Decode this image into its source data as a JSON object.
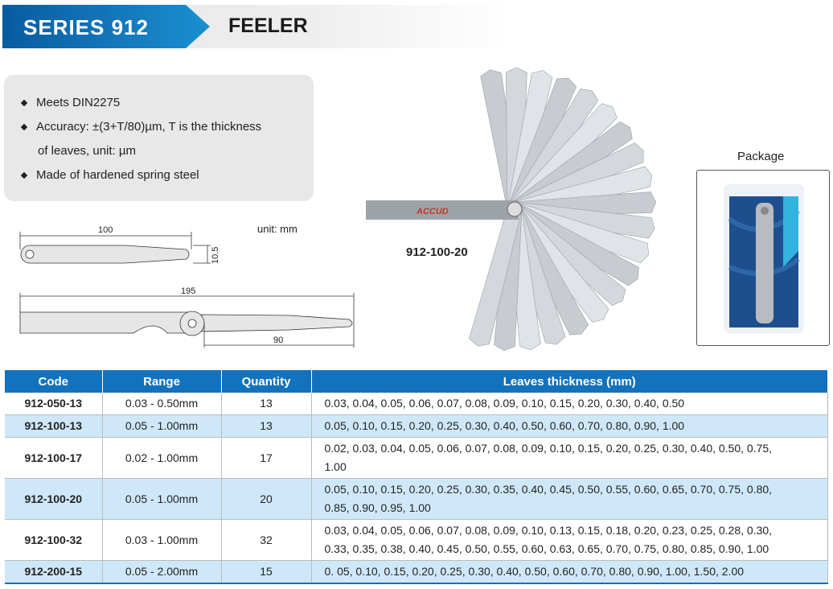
{
  "header": {
    "series": "SERIES 912",
    "product": "FEELER"
  },
  "features": [
    "Meets DIN2275",
    "Accuracy: ±(3+T/80)µm, T is the thickness",
    "of leaves, unit: µm",
    "Made of hardened spring steel"
  ],
  "drawing": {
    "unit": "unit: mm",
    "leaf_length": "100",
    "leaf_width": "10.5",
    "total_length": "195",
    "blade_length": "90"
  },
  "photo": {
    "model": "912-100-20",
    "brand_logo": "ACCUD"
  },
  "package": {
    "label": "Package"
  },
  "table": {
    "headers": [
      "Code",
      "Range",
      "Quantity",
      "Leaves thickness (mm)"
    ],
    "rows": [
      {
        "code": "912-050-13",
        "range": "0.03 - 0.50mm",
        "qty": "13",
        "leaves": "0.03, 0.04, 0.05, 0.06, 0.07, 0.08, 0.09, 0.10, 0.15, 0.20, 0.30, 0.40, 0.50"
      },
      {
        "code": "912-100-13",
        "range": "0.05 - 1.00mm",
        "qty": "13",
        "leaves": "0.05, 0.10, 0.15, 0.20, 0.25, 0.30, 0.40, 0.50, 0.60, 0.70, 0.80, 0.90, 1.00"
      },
      {
        "code": "912-100-17",
        "range": "0.02 - 1.00mm",
        "qty": "17",
        "leaves": "0.02, 0.03, 0.04, 0.05, 0.06, 0.07, 0.08, 0.09, 0.10, 0.15, 0.20, 0.25, 0.30, 0.40, 0.50, 0.75, 1.00"
      },
      {
        "code": "912-100-20",
        "range": "0.05 - 1.00mm",
        "qty": "20",
        "leaves": "0.05, 0.10, 0.15, 0.20, 0.25, 0.30, 0.35, 0.40, 0.45, 0.50, 0.55, 0.60, 0.65, 0.70, 0.75, 0.80, 0.85, 0.90, 0.95, 1.00"
      },
      {
        "code": "912-100-32",
        "range": "0.03 - 1.00mm",
        "qty": "32",
        "leaves": "0.03, 0.04, 0.05, 0.06, 0.07, 0.08, 0.09, 0.10, 0.13, 0.15, 0.18, 0.20, 0.23, 0.25, 0.28, 0.30, 0.33, 0.35, 0.38, 0.40, 0.45, 0.50, 0.55, 0.60, 0.63, 0.65, 0.70, 0.75, 0.80, 0.85, 0.90, 1.00"
      },
      {
        "code": "912-200-15",
        "range": "0.05 - 2.00mm",
        "qty": "15",
        "leaves": "0. 05, 0.10, 0.15, 0.20, 0.25, 0.30, 0.40, 0.50, 0.60, 0.70, 0.80, 0.90, 1.00, 1.50, 2.00"
      }
    ]
  },
  "colors": {
    "accent": "#1272bd",
    "row_alt": "#cfe8f9"
  }
}
